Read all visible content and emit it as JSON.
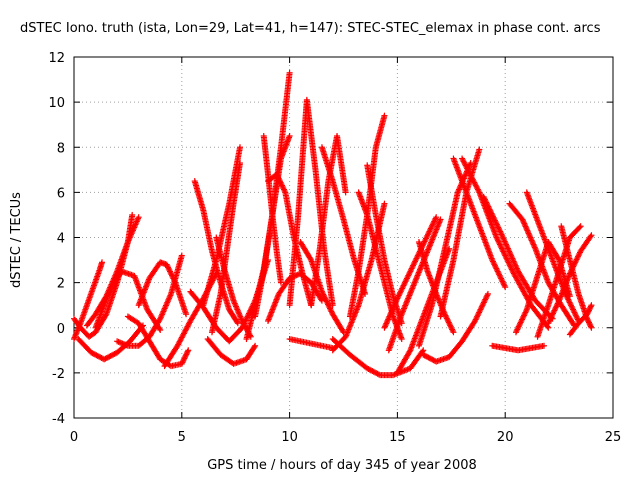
{
  "chart_data": {
    "type": "scatter",
    "title": "dSTEC Iono. truth (ista, Lon=29, Lat=41, h=147): STEC-STEC_elemax in phase cont. arcs",
    "xlabel": "GPS time / hours of day 345 of year 2008",
    "ylabel": "dSTEC  / TECUs",
    "xlim": [
      0,
      25
    ],
    "ylim": [
      -4,
      12
    ],
    "xticks": [
      0,
      5,
      10,
      15,
      20,
      25
    ],
    "yticks": [
      -4,
      -2,
      0,
      2,
      4,
      6,
      8,
      10,
      12
    ],
    "grid": true,
    "marker": "+",
    "color": "#ff0000",
    "series": [
      {
        "x": [
          0.0,
          0.3,
          0.6,
          0.9,
          1.2,
          1.3
        ],
        "y": [
          -0.5,
          0.2,
          1.0,
          1.8,
          2.6,
          2.9
        ]
      },
      {
        "x": [
          0.0,
          0.3,
          0.7,
          1.0,
          1.5,
          2.0,
          2.5,
          2.7
        ],
        "y": [
          0.4,
          0.0,
          -0.4,
          -0.2,
          0.6,
          2.0,
          3.8,
          5.0
        ]
      },
      {
        "x": [
          0.6,
          1.0,
          1.5,
          2.0,
          2.5,
          3.0
        ],
        "y": [
          0.1,
          0.6,
          1.4,
          2.5,
          3.8,
          4.9
        ]
      },
      {
        "x": [
          0.2,
          0.8,
          1.4,
          2.0,
          2.6,
          3.2
        ],
        "y": [
          -0.5,
          -1.1,
          -1.4,
          -1.1,
          -0.6,
          0.1
        ]
      },
      {
        "x": [
          1.0,
          1.6,
          2.2,
          2.8,
          3.4,
          4.0
        ],
        "y": [
          0.0,
          1.5,
          2.5,
          2.3,
          0.8,
          -0.1
        ]
      },
      {
        "x": [
          2.0,
          2.5,
          3.0,
          3.5,
          4.0,
          4.5,
          5.0
        ],
        "y": [
          -0.6,
          -0.8,
          -0.8,
          -0.4,
          0.4,
          1.5,
          3.2
        ]
      },
      {
        "x": [
          2.5,
          3.0,
          3.5,
          4.0,
          4.5,
          5.0,
          5.3
        ],
        "y": [
          0.5,
          0.2,
          -0.6,
          -1.4,
          -1.7,
          -1.6,
          -1.0
        ]
      },
      {
        "x": [
          3.0,
          3.5,
          4.0,
          4.3,
          4.7,
          5.2
        ],
        "y": [
          1.0,
          2.2,
          2.9,
          2.8,
          2.0,
          0.6
        ]
      },
      {
        "x": [
          4.2,
          4.8,
          5.4,
          6.0,
          6.6
        ],
        "y": [
          -1.7,
          -0.8,
          0.3,
          1.3,
          2.4
        ]
      },
      {
        "x": [
          5.4,
          6.0,
          6.6,
          7.2,
          7.8,
          8.4,
          9.0
        ],
        "y": [
          1.6,
          0.9,
          0.0,
          -0.6,
          0.0,
          1.2,
          3.0
        ]
      },
      {
        "x": [
          5.6,
          6.0,
          6.4,
          6.8,
          7.2,
          7.6
        ],
        "y": [
          6.5,
          5.2,
          3.4,
          2.0,
          0.8,
          0.2
        ]
      },
      {
        "x": [
          6.0,
          6.6,
          7.2,
          7.7
        ],
        "y": [
          1.0,
          3.0,
          5.5,
          8.0
        ]
      },
      {
        "x": [
          6.2,
          6.8,
          7.4,
          8.0,
          8.4
        ],
        "y": [
          -0.5,
          -1.2,
          -1.6,
          -1.4,
          -0.8
        ]
      },
      {
        "x": [
          6.6,
          7.0,
          7.4,
          7.8,
          8.2
        ],
        "y": [
          4.0,
          2.5,
          1.2,
          0.3,
          -0.4
        ]
      },
      {
        "x": [
          6.4,
          6.8,
          7.1,
          7.4,
          7.7
        ],
        "y": [
          -0.2,
          1.5,
          3.5,
          5.5,
          7.3
        ]
      },
      {
        "x": [
          8.0,
          8.4,
          8.8,
          9.2,
          9.6,
          10.0
        ],
        "y": [
          -0.5,
          1.0,
          2.6,
          5.0,
          7.5,
          8.5
        ]
      },
      {
        "x": [
          8.4,
          8.8,
          9.2,
          9.6,
          10.0
        ],
        "y": [
          0.5,
          2.5,
          5.0,
          8.0,
          11.3
        ]
      },
      {
        "x": [
          8.8,
          9.0,
          9.2,
          9.4,
          9.6
        ],
        "y": [
          8.5,
          6.8,
          5.0,
          3.4,
          2.0
        ]
      },
      {
        "x": [
          9.0,
          9.4,
          9.8,
          10.2,
          10.6,
          11.0
        ],
        "y": [
          6.5,
          6.8,
          6.0,
          4.0,
          2.4,
          1.0
        ]
      },
      {
        "x": [
          9.0,
          9.5,
          10.0,
          10.5,
          11.0,
          11.5
        ],
        "y": [
          0.3,
          1.5,
          2.2,
          2.4,
          2.0,
          1.2
        ]
      },
      {
        "x": [
          10.0,
          10.4,
          10.8,
          11.2,
          11.6,
          12.0
        ],
        "y": [
          1.0,
          5.0,
          10.1,
          7.0,
          3.5,
          1.0
        ]
      },
      {
        "x": [
          10.5,
          11.0,
          11.5,
          12.0,
          12.5
        ],
        "y": [
          3.8,
          3.0,
          1.6,
          0.6,
          -0.2
        ]
      },
      {
        "x": [
          10.0,
          10.5,
          11.0,
          11.5,
          12.0
        ],
        "y": [
          -0.5,
          -0.6,
          -0.7,
          -0.8,
          -0.9
        ]
      },
      {
        "x": [
          11.0,
          11.4,
          11.8,
          12.2,
          12.6
        ],
        "y": [
          1.0,
          3.5,
          6.5,
          8.5,
          6.0
        ]
      },
      {
        "x": [
          11.5,
          12.0,
          12.5,
          13.0,
          13.5
        ],
        "y": [
          8.0,
          6.5,
          4.8,
          3.0,
          1.5
        ]
      },
      {
        "x": [
          12.0,
          12.6,
          13.2,
          13.8,
          14.4
        ],
        "y": [
          -1.0,
          -0.4,
          1.0,
          3.0,
          5.5
        ]
      },
      {
        "x": [
          12.8,
          13.2,
          13.6,
          14.0,
          14.4
        ],
        "y": [
          0.5,
          2.5,
          5.0,
          8.0,
          9.4
        ]
      },
      {
        "x": [
          13.2,
          13.6,
          14.0,
          14.4,
          14.8,
          15.2
        ],
        "y": [
          6.0,
          5.0,
          3.5,
          2.0,
          0.5,
          -0.5
        ]
      },
      {
        "x": [
          12.0,
          12.8,
          13.6,
          14.2,
          14.8,
          15.6,
          16.2
        ],
        "y": [
          -0.5,
          -1.2,
          -1.8,
          -2.1,
          -2.1,
          -1.8,
          -1.0
        ]
      },
      {
        "x": [
          13.6,
          14.0,
          14.4,
          14.8,
          15.2
        ],
        "y": [
          7.2,
          5.0,
          3.0,
          1.4,
          0.2
        ]
      },
      {
        "x": [
          14.4,
          15.0,
          15.6,
          16.2,
          16.8
        ],
        "y": [
          0.0,
          1.3,
          2.5,
          3.7,
          4.9
        ]
      },
      {
        "x": [
          14.6,
          15.2,
          15.8,
          16.4,
          17.0
        ],
        "y": [
          -1.0,
          0.6,
          2.0,
          3.4,
          4.8
        ]
      },
      {
        "x": [
          15.0,
          15.6,
          16.2,
          16.8,
          17.4
        ],
        "y": [
          -2.0,
          -1.0,
          0.5,
          2.0,
          3.5
        ]
      },
      {
        "x": [
          16.0,
          16.6,
          17.2,
          17.8,
          18.4
        ],
        "y": [
          -0.8,
          1.0,
          3.5,
          6.0,
          7.3
        ]
      },
      {
        "x": [
          16.0,
          16.4,
          16.8,
          17.2,
          17.6
        ],
        "y": [
          3.8,
          2.5,
          1.5,
          0.6,
          -0.2
        ]
      },
      {
        "x": [
          16.2,
          16.8,
          17.4,
          18.0,
          18.6,
          19.2
        ],
        "y": [
          -1.2,
          -1.5,
          -1.3,
          -0.6,
          0.3,
          1.5
        ]
      },
      {
        "x": [
          17.0,
          17.6,
          18.2,
          18.8
        ],
        "y": [
          0.5,
          3.0,
          6.0,
          7.9
        ]
      },
      {
        "x": [
          17.6,
          18.2,
          18.8,
          19.4,
          20.0
        ],
        "y": [
          7.5,
          6.0,
          4.5,
          3.0,
          1.8
        ]
      },
      {
        "x": [
          18.0,
          18.8,
          19.6,
          20.4,
          21.2,
          22.0
        ],
        "y": [
          7.5,
          6.0,
          4.0,
          2.4,
          1.0,
          0.0
        ]
      },
      {
        "x": [
          19.0,
          19.8,
          20.6,
          21.4,
          22.2
        ],
        "y": [
          5.8,
          4.2,
          2.5,
          1.2,
          0.4
        ]
      },
      {
        "x": [
          19.4,
          20.0,
          20.6,
          21.2,
          21.8
        ],
        "y": [
          -0.8,
          -0.9,
          -1.0,
          -0.9,
          -0.8
        ]
      },
      {
        "x": [
          20.2,
          20.8,
          21.4,
          22.0,
          22.6,
          23.2
        ],
        "y": [
          5.5,
          4.8,
          3.5,
          2.0,
          1.0,
          0.1
        ]
      },
      {
        "x": [
          20.5,
          21.0,
          21.5,
          22.0,
          22.5,
          23.0
        ],
        "y": [
          -0.2,
          0.8,
          2.3,
          3.8,
          3.0,
          1.4
        ]
      },
      {
        "x": [
          21.0,
          21.6,
          22.2,
          22.8,
          23.4
        ],
        "y": [
          6.0,
          4.5,
          3.0,
          1.5,
          0.3
        ]
      },
      {
        "x": [
          21.5,
          22.0,
          22.5,
          23.0,
          23.5
        ],
        "y": [
          -0.4,
          1.0,
          2.5,
          4.0,
          4.5
        ]
      },
      {
        "x": [
          22.0,
          22.5,
          23.0,
          23.5,
          24.0
        ],
        "y": [
          0.2,
          1.2,
          2.4,
          3.4,
          4.1
        ]
      },
      {
        "x": [
          22.6,
          23.0,
          23.4,
          23.8,
          24.0
        ],
        "y": [
          4.5,
          3.0,
          1.5,
          0.4,
          0.0
        ]
      },
      {
        "x": [
          23.0,
          23.4,
          23.8,
          24.0
        ],
        "y": [
          -0.3,
          0.2,
          0.6,
          1.0
        ]
      }
    ]
  }
}
